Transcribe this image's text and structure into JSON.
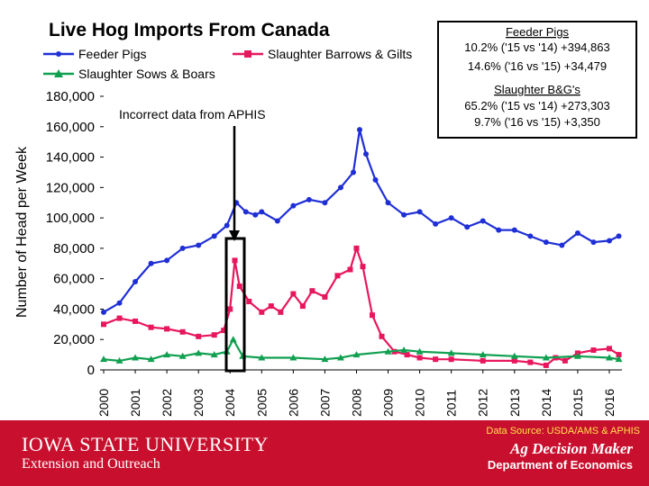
{
  "chart_data": {
    "type": "line",
    "title": "Live Hog Imports From Canada",
    "ylabel": "Number of Head per Week",
    "ylim": [
      0,
      180000
    ],
    "yticks": [
      "0",
      "20,000",
      "40,000",
      "60,000",
      "80,000",
      "100,000",
      "120,000",
      "140,000",
      "160,000",
      "180,000"
    ],
    "xticks": [
      "2000",
      "2001",
      "2002",
      "2003",
      "2004",
      "2005",
      "2006",
      "2007",
      "2008",
      "2009",
      "2010",
      "2011",
      "2012",
      "2013",
      "2014",
      "2015",
      "2016"
    ],
    "xlim": [
      2000,
      2016.4
    ],
    "series": [
      {
        "name": "Feeder Pigs",
        "color": "#1f2fd6",
        "x": [
          2000.0,
          2000.5,
          2001.0,
          2001.5,
          2002.0,
          2002.5,
          2003.0,
          2003.5,
          2003.9,
          2004.2,
          2004.5,
          2004.8,
          2005.0,
          2005.5,
          2006.0,
          2006.5,
          2007.0,
          2007.5,
          2007.9,
          2008.1,
          2008.3,
          2008.6,
          2009.0,
          2009.5,
          2010.0,
          2010.5,
          2011.0,
          2011.5,
          2012.0,
          2012.5,
          2013.0,
          2013.5,
          2014.0,
          2014.5,
          2015.0,
          2015.5,
          2016.0,
          2016.3
        ],
        "values": [
          38000,
          44000,
          58000,
          70000,
          72000,
          80000,
          82000,
          88000,
          95000,
          110000,
          104000,
          102000,
          104000,
          98000,
          108000,
          112000,
          110000,
          120000,
          130000,
          158000,
          142000,
          125000,
          110000,
          102000,
          104000,
          96000,
          100000,
          94000,
          98000,
          92000,
          92000,
          88000,
          84000,
          82000,
          90000,
          84000,
          85000,
          88000
        ]
      },
      {
        "name": "Slaughter Barrows & Gilts",
        "color": "#e8175d",
        "x": [
          2000.0,
          2000.5,
          2001.0,
          2001.5,
          2002.0,
          2002.5,
          2003.0,
          2003.5,
          2003.8,
          2004.0,
          2004.15,
          2004.3,
          2004.6,
          2005.0,
          2005.3,
          2005.6,
          2006.0,
          2006.3,
          2006.6,
          2007.0,
          2007.4,
          2007.8,
          2008.0,
          2008.2,
          2008.5,
          2008.8,
          2009.2,
          2009.6,
          2010.0,
          2010.5,
          2011.0,
          2012.0,
          2013.0,
          2013.5,
          2014.0,
          2014.3,
          2014.6,
          2015.0,
          2015.5,
          2016.0,
          2016.3
        ],
        "values": [
          30000,
          34000,
          32000,
          28000,
          27000,
          25000,
          22000,
          23000,
          26000,
          40000,
          72000,
          55000,
          45000,
          38000,
          42000,
          38000,
          50000,
          42000,
          52000,
          48000,
          62000,
          66000,
          80000,
          68000,
          36000,
          22000,
          12000,
          10000,
          8000,
          7000,
          7000,
          6000,
          6000,
          5000,
          3000,
          8000,
          6000,
          11000,
          13000,
          14000,
          10000
        ]
      },
      {
        "name": "Slaughter Sows & Boars",
        "color": "#10a050",
        "x": [
          2000.0,
          2000.5,
          2001.0,
          2001.5,
          2002.0,
          2002.5,
          2003.0,
          2003.5,
          2003.9,
          2004.1,
          2004.4,
          2005.0,
          2006.0,
          2007.0,
          2007.5,
          2008.0,
          2009.0,
          2009.5,
          2010.0,
          2011.0,
          2012.0,
          2013.0,
          2014.0,
          2015.0,
          2016.0,
          2016.3
        ],
        "values": [
          7000,
          6000,
          8000,
          7000,
          10000,
          9000,
          11000,
          10000,
          12000,
          20000,
          9000,
          8000,
          8000,
          7000,
          8000,
          10000,
          12000,
          13000,
          12000,
          11000,
          10000,
          9000,
          8000,
          9000,
          8000,
          7000
        ]
      }
    ],
    "annotations": {
      "aphis_note": "Incorrect data from APHIS",
      "box": {
        "feeder_title": "Feeder Pigs",
        "feeder_line1": "10.2% ('15 vs '14) +394,863",
        "feeder_line2": "14.6% ('16 vs '15) +34,479",
        "bg_title": "Slaughter B&G's",
        "bg_line1": "65.2% ('15 vs '14) +273,303",
        "bg_line2": "9.7% ('16 vs '15) +3,350"
      }
    }
  },
  "footer": {
    "university": "IOWA STATE UNIVERSITY",
    "unit": "Extension and Outreach",
    "source": "Data Source: USDA/AMS & APHIS",
    "brand": "Ag Decision Maker",
    "department": "Department of Economics",
    "bg_color": "#c8102e"
  }
}
